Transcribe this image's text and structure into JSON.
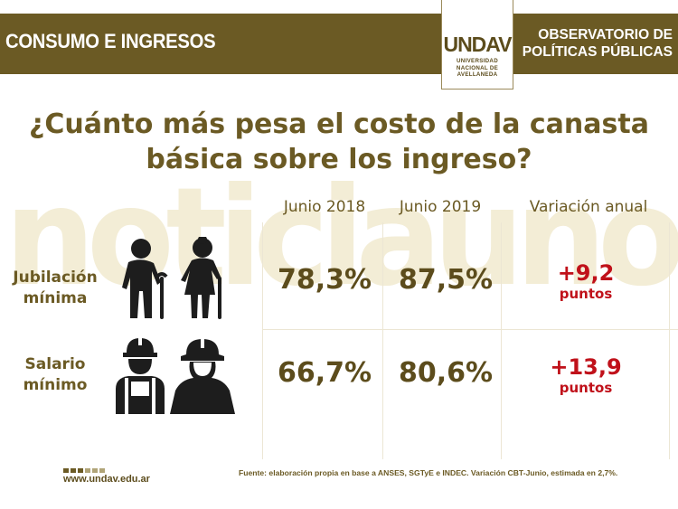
{
  "header": {
    "section": "CONSUMO E INGRESOS",
    "observatory_line1": "OBSERVATORIO DE",
    "observatory_line2": "POLÍTICAS PÚBLICAS",
    "logo_word": "UNDAV",
    "logo_line1": "UNIVERSIDAD",
    "logo_line2": "NACIONAL DE",
    "logo_line3": "AVELLANEDA"
  },
  "watermark": "noticiauno",
  "title_line1": "¿Cuánto más pesa el costo de la canasta",
  "title_line2": "básica sobre los ingreso?",
  "columns": [
    "Junio 2018",
    "Junio 2019",
    "Variación anual"
  ],
  "rows": [
    {
      "label_line1": "Jubilación",
      "label_line2": "mínima",
      "v2018": "78,3%",
      "v2019": "87,5%",
      "variation": "+9,2",
      "unit": "puntos",
      "icon": "elderly-couple-icon"
    },
    {
      "label_line1": "Salario",
      "label_line2": "mínimo",
      "v2018": "66,7%",
      "v2019": "80,6%",
      "variation": "+13,9",
      "unit": "puntos",
      "icon": "workers-icon"
    }
  ],
  "footer": {
    "url": "www.undav.edu.ar",
    "source": "Fuente: elaboración propia en base a ANSES, SGTyE e INDEC. Variación CBT-Junio, estimada en 2,7%."
  },
  "colors": {
    "brand": "#6b5a24",
    "accent_red": "#c0111a",
    "watermark": "#f3edd6"
  }
}
